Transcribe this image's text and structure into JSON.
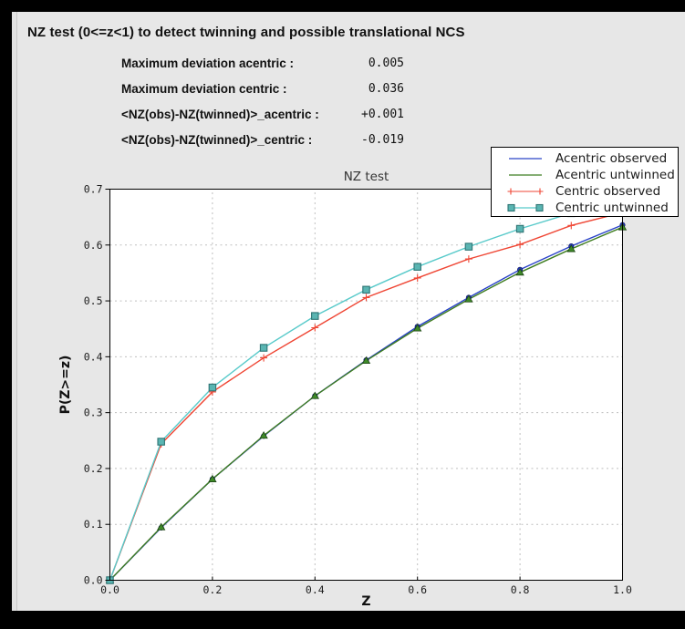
{
  "window": {
    "background": "#000000",
    "panel_background": "#e7e7e7"
  },
  "header": {
    "title": "NZ test (0<=z<1) to detect twinning and possible translational NCS"
  },
  "stats": [
    {
      "label": "Maximum deviation acentric :",
      "value": "0.005"
    },
    {
      "label": "Maximum deviation centric :",
      "value": "0.036"
    },
    {
      "label": "<NZ(obs)-NZ(twinned)>_acentric :",
      "value": "+0.001"
    },
    {
      "label": "<NZ(obs)-NZ(twinned)>_centric :",
      "value": "-0.019"
    }
  ],
  "chart_data": {
    "type": "line",
    "title": "NZ test",
    "xlabel": "Z",
    "ylabel": "P(Z>=z)",
    "xlim": [
      0.0,
      1.0
    ],
    "ylim": [
      0.0,
      0.7
    ],
    "xticks": [
      0.0,
      0.2,
      0.4,
      0.6,
      0.8,
      1.0
    ],
    "yticks": [
      0.0,
      0.1,
      0.2,
      0.3,
      0.4,
      0.5,
      0.6,
      0.7
    ],
    "grid": true,
    "legend_position": "upper right",
    "x": [
      0.0,
      0.1,
      0.2,
      0.3,
      0.4,
      0.5,
      0.6,
      0.7,
      0.8,
      0.9,
      1.0
    ],
    "series": [
      {
        "name": "Acentric observed",
        "color": "#2a43c8",
        "marker": "circle",
        "marker_fill": "#2336b8",
        "marker_edge": "#111c66",
        "values": [
          0.0,
          0.094,
          0.181,
          0.258,
          0.33,
          0.394,
          0.454,
          0.506,
          0.556,
          0.598,
          0.636
        ]
      },
      {
        "name": "Acentric untwinned",
        "color": "#3f7d20",
        "marker": "triangle",
        "marker_fill": "#3f8a28",
        "marker_edge": "#1c4515",
        "values": [
          0.0,
          0.095,
          0.181,
          0.259,
          0.33,
          0.393,
          0.451,
          0.503,
          0.551,
          0.593,
          0.632
        ]
      },
      {
        "name": "Centric observed",
        "color": "#ef4634",
        "marker": "plus",
        "marker_fill": "#ef4634",
        "marker_edge": "#ef4634",
        "values": [
          0.0,
          0.244,
          0.337,
          0.398,
          0.452,
          0.506,
          0.541,
          0.575,
          0.601,
          0.635,
          0.658
        ]
      },
      {
        "name": "Centric untwinned",
        "color": "#58caca",
        "marker": "square",
        "marker_fill": "#5ab5b2",
        "marker_edge": "#2e7474",
        "values": [
          0.0,
          0.248,
          0.345,
          0.416,
          0.473,
          0.52,
          0.561,
          0.597,
          0.629,
          0.657,
          0.683
        ]
      }
    ]
  }
}
